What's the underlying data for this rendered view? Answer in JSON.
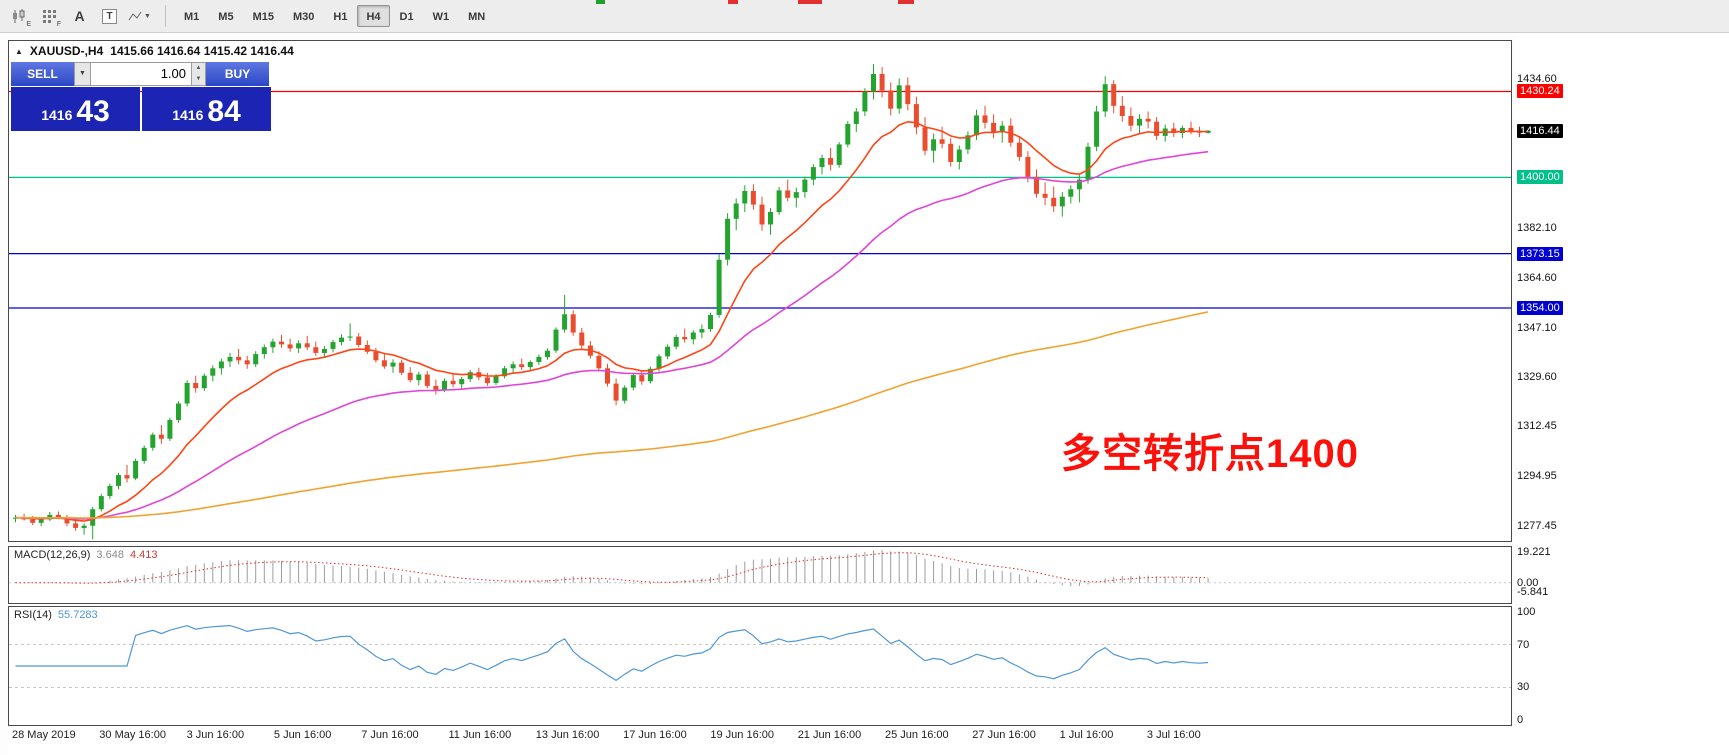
{
  "toolbar": {
    "icons": [
      {
        "name": "candlesticks-icon",
        "sub": "E"
      },
      {
        "name": "indicator-grid-icon",
        "sub": "F"
      },
      {
        "name": "text-label-icon",
        "glyph": "A"
      },
      {
        "name": "text-box-icon",
        "glyph": "T"
      },
      {
        "name": "drawing-tools-icon",
        "caret": "▼"
      }
    ],
    "timeframes": [
      "M1",
      "M5",
      "M15",
      "M30",
      "H1",
      "H4",
      "D1",
      "W1",
      "MN"
    ],
    "active_timeframe": "H4"
  },
  "chart_header": {
    "collapse_arrow": "▲",
    "symbol_period": "XAUUSD-,H4",
    "ohlc": "1415.66 1416.64 1415.42 1416.44"
  },
  "trade_panel": {
    "sell_label": "SELL",
    "buy_label": "BUY",
    "volume": "1.00",
    "drop_caret": "▼",
    "spin_up": "▲",
    "spin_down": "▼",
    "bid_main": "1416",
    "bid_pips": "43",
    "ask_main": "1416",
    "ask_pips": "84"
  },
  "annotation": {
    "text": "多空转折点1400",
    "color": "#fb100a"
  },
  "levels": [
    {
      "price": 1430.24,
      "label": "1430.24",
      "color": "#ff0000"
    },
    {
      "price": 1400.0,
      "label": "1400.00",
      "color": "#00c08a"
    },
    {
      "price": 1373.15,
      "label": "1373.15",
      "color": "#0000d0"
    },
    {
      "price": 1354.0,
      "label": "1354.00",
      "color": "#0000d0"
    }
  ],
  "price_axis": {
    "ticks": [
      "1434.60",
      "1382.10",
      "1364.60",
      "1347.10",
      "1329.60",
      "1312.45",
      "1294.95",
      "1277.45"
    ],
    "tick_values": [
      1434.6,
      1382.1,
      1364.6,
      1347.1,
      1329.6,
      1312.45,
      1294.95,
      1277.45
    ],
    "current": {
      "value": 1416.44,
      "label": "1416.44",
      "bg": "#000000"
    }
  },
  "macd_panel": {
    "name": "MACD(12,26,9)",
    "value_macd": "3.648",
    "value_signal": "4.413",
    "axis": [
      {
        "v": 19.221,
        "label": "19.221"
      },
      {
        "v": 0,
        "label": "0.00"
      },
      {
        "v": -5.841,
        "label": "-5.841"
      }
    ],
    "histogram_color": "#9c9c9c",
    "signal_color": "#e03030",
    "range": [
      -12.5,
      22
    ]
  },
  "rsi_panel": {
    "name": "RSI(14)",
    "value": "55.7283",
    "period": 14,
    "axis": [
      {
        "v": 100,
        "label": "100"
      },
      {
        "v": 70,
        "label": "70"
      },
      {
        "v": 30,
        "label": "30"
      },
      {
        "v": 0,
        "label": "0"
      }
    ],
    "levels": [
      70,
      30
    ],
    "line_color": "#4f97d7"
  },
  "time_axis": [
    "28 May 2019",
    "30 May 16:00",
    "3 Jun 16:00",
    "5 Jun 16:00",
    "7 Jun 16:00",
    "11 Jun 16:00",
    "13 Jun 16:00",
    "17 Jun 16:00",
    "19 Jun 16:00",
    "21 Jun 16:00",
    "25 Jun 16:00",
    "27 Jun 16:00",
    "1 Jul 16:00",
    "3 Jul 16:00"
  ],
  "chart_data": {
    "type": "candlestick",
    "symbol": "XAUUSD-",
    "timeframe": "H4",
    "title": "XAUUSD-,H4 1415.66 1416.64 1415.42 1416.44",
    "price_range": [
      1272,
      1448
    ],
    "up_color": "#23a42f",
    "down_color": "#ea4d2e",
    "ma": [
      {
        "period": 12,
        "color": "#ff4517"
      },
      {
        "period": 40,
        "color": "#e145d6"
      },
      {
        "period": 200,
        "color": "#f0a330"
      }
    ],
    "candles": [
      [
        1279.8,
        1281.2,
        1278.6,
        1280.2
      ],
      [
        1280.2,
        1281.6,
        1279.2,
        1279.6
      ],
      [
        1279.6,
        1280.8,
        1277.6,
        1278.4
      ],
      [
        1278.4,
        1280.2,
        1277.2,
        1279.6
      ],
      [
        1279.6,
        1282.2,
        1279.0,
        1281.2
      ],
      [
        1281.2,
        1282.4,
        1279.6,
        1280.2
      ],
      [
        1280.2,
        1281.2,
        1277.2,
        1278.2
      ],
      [
        1278.2,
        1279.6,
        1275.6,
        1276.6
      ],
      [
        1276.6,
        1278.2,
        1274.2,
        1277.4
      ],
      [
        1277.4,
        1284.0,
        1272.6,
        1283.2
      ],
      [
        1283.2,
        1288.6,
        1282.4,
        1287.8
      ],
      [
        1287.8,
        1292.2,
        1286.8,
        1291.4
      ],
      [
        1291.4,
        1296.0,
        1290.2,
        1295.2
      ],
      [
        1295.2,
        1298.8,
        1292.6,
        1294.0
      ],
      [
        1294.0,
        1301.0,
        1293.4,
        1300.2
      ],
      [
        1300.2,
        1305.6,
        1299.2,
        1304.8
      ],
      [
        1304.8,
        1310.2,
        1303.8,
        1309.4
      ],
      [
        1309.4,
        1312.8,
        1306.2,
        1308.0
      ],
      [
        1308.0,
        1315.4,
        1307.2,
        1314.6
      ],
      [
        1314.6,
        1321.2,
        1313.6,
        1320.4
      ],
      [
        1320.4,
        1328.6,
        1319.4,
        1327.6
      ],
      [
        1327.6,
        1330.2,
        1324.2,
        1325.8
      ],
      [
        1325.8,
        1331.0,
        1324.8,
        1330.2
      ],
      [
        1330.2,
        1333.8,
        1328.2,
        1332.8
      ],
      [
        1332.8,
        1336.2,
        1330.6,
        1335.2
      ],
      [
        1335.2,
        1338.2,
        1333.2,
        1336.8
      ],
      [
        1336.8,
        1339.6,
        1334.2,
        1335.6
      ],
      [
        1335.6,
        1337.2,
        1332.6,
        1334.2
      ],
      [
        1334.2,
        1338.8,
        1333.2,
        1337.8
      ],
      [
        1337.8,
        1341.2,
        1336.2,
        1340.2
      ],
      [
        1340.2,
        1343.2,
        1338.2,
        1342.2
      ],
      [
        1342.2,
        1344.6,
        1340.0,
        1341.2
      ],
      [
        1341.2,
        1343.2,
        1338.6,
        1339.8
      ],
      [
        1339.8,
        1342.6,
        1338.2,
        1341.6
      ],
      [
        1341.6,
        1344.2,
        1339.2,
        1340.2
      ],
      [
        1340.2,
        1342.2,
        1337.2,
        1338.2
      ],
      [
        1338.2,
        1340.6,
        1336.6,
        1339.6
      ],
      [
        1339.6,
        1342.8,
        1338.4,
        1342.0
      ],
      [
        1342.0,
        1344.8,
        1340.8,
        1343.6
      ],
      [
        1343.6,
        1348.6,
        1342.4,
        1344.0
      ],
      [
        1344.0,
        1345.2,
        1340.2,
        1341.0
      ],
      [
        1341.0,
        1342.6,
        1337.8,
        1338.6
      ],
      [
        1338.6,
        1340.0,
        1334.8,
        1335.6
      ],
      [
        1335.6,
        1337.8,
        1332.6,
        1333.4
      ],
      [
        1333.4,
        1336.0,
        1331.2,
        1334.8
      ],
      [
        1334.8,
        1335.8,
        1330.4,
        1331.2
      ],
      [
        1331.2,
        1333.2,
        1327.8,
        1328.6
      ],
      [
        1328.6,
        1331.6,
        1326.8,
        1330.6
      ],
      [
        1330.6,
        1331.8,
        1325.8,
        1326.6
      ],
      [
        1326.6,
        1328.8,
        1323.6,
        1325.2
      ],
      [
        1325.2,
        1329.2,
        1324.4,
        1328.4
      ],
      [
        1328.4,
        1330.6,
        1326.2,
        1327.2
      ],
      [
        1327.2,
        1329.8,
        1325.2,
        1329.0
      ],
      [
        1329.0,
        1332.2,
        1328.0,
        1331.4
      ],
      [
        1331.4,
        1333.0,
        1328.6,
        1329.6
      ],
      [
        1329.6,
        1331.2,
        1326.6,
        1327.6
      ],
      [
        1327.6,
        1330.8,
        1326.8,
        1330.0
      ],
      [
        1330.0,
        1333.6,
        1329.2,
        1332.8
      ],
      [
        1332.8,
        1335.2,
        1331.2,
        1334.2
      ],
      [
        1334.2,
        1336.2,
        1332.2,
        1333.2
      ],
      [
        1333.2,
        1335.6,
        1331.8,
        1335.0
      ],
      [
        1335.0,
        1337.6,
        1334.0,
        1336.8
      ],
      [
        1336.8,
        1339.8,
        1335.8,
        1339.0
      ],
      [
        1339.0,
        1347.2,
        1338.2,
        1346.4
      ],
      [
        1346.4,
        1358.6,
        1345.4,
        1351.8
      ],
      [
        1351.8,
        1353.2,
        1344.2,
        1345.4
      ],
      [
        1345.4,
        1347.0,
        1339.6,
        1340.8
      ],
      [
        1340.8,
        1342.4,
        1336.2,
        1337.2
      ],
      [
        1337.2,
        1338.8,
        1331.8,
        1332.8
      ],
      [
        1332.8,
        1334.4,
        1326.4,
        1327.4
      ],
      [
        1327.4,
        1329.2,
        1319.8,
        1321.4
      ],
      [
        1321.4,
        1326.8,
        1320.4,
        1326.0
      ],
      [
        1326.0,
        1331.2,
        1325.0,
        1330.4
      ],
      [
        1330.4,
        1332.0,
        1327.0,
        1328.2
      ],
      [
        1328.2,
        1333.4,
        1327.4,
        1332.6
      ],
      [
        1332.6,
        1337.8,
        1331.6,
        1337.0
      ],
      [
        1337.0,
        1341.2,
        1336.0,
        1340.4
      ],
      [
        1340.4,
        1344.6,
        1339.4,
        1343.8
      ],
      [
        1343.8,
        1346.8,
        1341.8,
        1343.0
      ],
      [
        1343.0,
        1346.2,
        1341.2,
        1345.4
      ],
      [
        1345.4,
        1348.2,
        1343.4,
        1346.6
      ],
      [
        1346.6,
        1352.4,
        1345.6,
        1351.6
      ],
      [
        1351.6,
        1373.0,
        1350.6,
        1371.0
      ],
      [
        1371.0,
        1387.4,
        1369.0,
        1385.4
      ],
      [
        1385.4,
        1392.6,
        1381.4,
        1390.8
      ],
      [
        1390.8,
        1397.2,
        1387.8,
        1395.2
      ],
      [
        1395.2,
        1397.6,
        1388.6,
        1390.4
      ],
      [
        1390.4,
        1393.2,
        1381.2,
        1383.4
      ],
      [
        1383.4,
        1389.2,
        1379.8,
        1387.8
      ],
      [
        1387.8,
        1396.6,
        1386.8,
        1395.4
      ],
      [
        1395.4,
        1399.2,
        1391.6,
        1392.8
      ],
      [
        1392.8,
        1396.4,
        1389.4,
        1394.8
      ],
      [
        1394.8,
        1400.2,
        1392.8,
        1399.2
      ],
      [
        1399.2,
        1404.6,
        1397.2,
        1403.6
      ],
      [
        1403.6,
        1408.0,
        1401.0,
        1406.8
      ],
      [
        1406.8,
        1410.4,
        1402.4,
        1404.4
      ],
      [
        1404.4,
        1412.4,
        1403.4,
        1411.6
      ],
      [
        1411.6,
        1419.8,
        1410.6,
        1418.8
      ],
      [
        1418.8,
        1424.4,
        1416.0,
        1423.2
      ],
      [
        1423.2,
        1431.4,
        1421.6,
        1430.2
      ],
      [
        1430.2,
        1439.8,
        1427.4,
        1436.4
      ],
      [
        1436.4,
        1438.8,
        1428.2,
        1430.6
      ],
      [
        1430.6,
        1433.4,
        1421.8,
        1424.2
      ],
      [
        1424.2,
        1434.8,
        1422.4,
        1432.4
      ],
      [
        1432.4,
        1435.2,
        1423.6,
        1425.8
      ],
      [
        1425.8,
        1428.4,
        1415.2,
        1417.6
      ],
      [
        1417.6,
        1421.2,
        1407.8,
        1409.4
      ],
      [
        1409.4,
        1415.4,
        1405.2,
        1413.4
      ],
      [
        1413.4,
        1417.8,
        1410.2,
        1411.8
      ],
      [
        1411.8,
        1413.8,
        1403.8,
        1405.4
      ],
      [
        1405.4,
        1411.2,
        1402.8,
        1409.8
      ],
      [
        1409.8,
        1416.2,
        1408.2,
        1414.8
      ],
      [
        1414.8,
        1423.8,
        1413.2,
        1421.8
      ],
      [
        1421.8,
        1425.2,
        1417.2,
        1419.2
      ],
      [
        1419.2,
        1422.2,
        1413.8,
        1415.8
      ],
      [
        1415.8,
        1419.8,
        1412.2,
        1418.2
      ],
      [
        1418.2,
        1420.8,
        1410.8,
        1412.2
      ],
      [
        1412.2,
        1414.2,
        1405.8,
        1407.2
      ],
      [
        1407.2,
        1409.2,
        1398.2,
        1400.2
      ],
      [
        1400.2,
        1402.8,
        1392.8,
        1394.2
      ],
      [
        1394.2,
        1398.2,
        1390.2,
        1392.8
      ],
      [
        1392.8,
        1396.8,
        1387.8,
        1389.8
      ],
      [
        1389.8,
        1394.8,
        1386.2,
        1393.2
      ],
      [
        1393.2,
        1397.2,
        1390.8,
        1395.8
      ],
      [
        1395.8,
        1400.8,
        1391.2,
        1399.2
      ],
      [
        1399.2,
        1412.2,
        1397.8,
        1410.8
      ],
      [
        1410.8,
        1425.2,
        1409.2,
        1423.2
      ],
      [
        1423.2,
        1435.6,
        1421.2,
        1432.8
      ],
      [
        1432.8,
        1434.2,
        1422.6,
        1425.2
      ],
      [
        1425.2,
        1428.6,
        1419.6,
        1421.6
      ],
      [
        1421.6,
        1424.6,
        1416.2,
        1418.2
      ],
      [
        1418.2,
        1422.2,
        1415.6,
        1420.6
      ],
      [
        1420.6,
        1423.2,
        1417.2,
        1419.6
      ],
      [
        1419.6,
        1421.2,
        1413.2,
        1414.6
      ],
      [
        1414.6,
        1418.6,
        1412.6,
        1417.2
      ],
      [
        1417.2,
        1419.2,
        1414.2,
        1415.6
      ],
      [
        1415.6,
        1418.2,
        1413.8,
        1417.4
      ],
      [
        1417.4,
        1419.6,
        1415.2,
        1416.2
      ],
      [
        1416.2,
        1417.8,
        1414.2,
        1415.7
      ],
      [
        1415.66,
        1416.64,
        1415.42,
        1416.44
      ]
    ]
  }
}
